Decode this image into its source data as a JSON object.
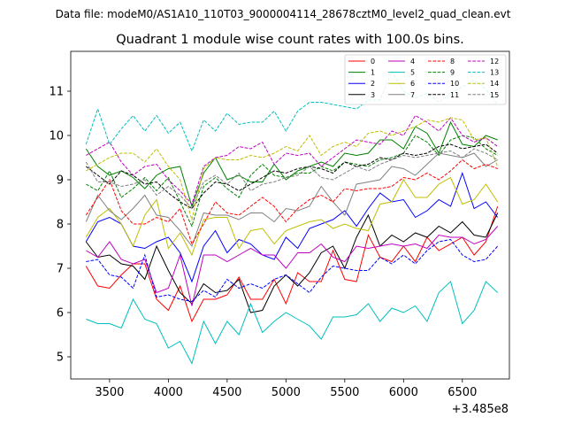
{
  "chart_data": {
    "type": "line",
    "suptitle": "Data file: modeM0/AS1A10_110T03_9000004114_28678cztM0_level2_quad_clean.evt",
    "title": "Quadrant 1 module wise count rates with 100.0s bins.",
    "xlabel": "",
    "ylabel": "",
    "x_offset_label": "+3.485e8",
    "xlim": [
      3170,
      6900
    ],
    "ylim": [
      4.5,
      11.9
    ],
    "xticks": [
      3500,
      4000,
      4500,
      5000,
      5500,
      6000,
      6500
    ],
    "xtick_labels": [
      "3500",
      "4000",
      "4500",
      "5000",
      "5500",
      "6000",
      "6500"
    ],
    "yticks": [
      5,
      6,
      7,
      8,
      9,
      10,
      11
    ],
    "ytick_labels": [
      "5",
      "6",
      "7",
      "8",
      "9",
      "10",
      "11"
    ],
    "legend_position": "top-right",
    "x": [
      3300,
      3400,
      3500,
      3600,
      3700,
      3800,
      3900,
      4000,
      4100,
      4200,
      4300,
      4400,
      4500,
      4600,
      4700,
      4800,
      4900,
      5000,
      5100,
      5200,
      5300,
      5400,
      5500,
      5600,
      5700,
      5800,
      5900,
      6000,
      6100,
      6200,
      6300,
      6400,
      6500,
      6600,
      6700,
      6800
    ],
    "series": [
      {
        "name": "0",
        "color": "#ff0000",
        "dash": "solid",
        "values": [
          7.05,
          6.6,
          6.55,
          6.85,
          7.1,
          7.1,
          6.3,
          6.05,
          6.6,
          5.8,
          6.3,
          6.3,
          6.4,
          6.8,
          6.3,
          6.3,
          6.75,
          6.2,
          6.9,
          6.7,
          6.7,
          7.4,
          6.75,
          6.7,
          7.75,
          7.25,
          7.15,
          7.5,
          7.15,
          7.7,
          7.4,
          7.55,
          7.7,
          7.3,
          7.6,
          8.4
        ]
      },
      {
        "name": "1",
        "color": "#008000",
        "dash": "solid",
        "values": [
          9.7,
          9.3,
          9.1,
          9.2,
          9.05,
          8.8,
          9.1,
          9.25,
          9.3,
          8.4,
          9.15,
          9.5,
          9.0,
          9.1,
          8.95,
          8.95,
          9.35,
          9.0,
          9.2,
          9.3,
          9.4,
          9.3,
          9.6,
          9.55,
          9.6,
          9.9,
          9.9,
          9.7,
          10.2,
          10.05,
          9.6,
          10.3,
          9.8,
          9.75,
          10.0,
          9.9
        ]
      },
      {
        "name": "2",
        "color": "#0000ff",
        "dash": "solid",
        "values": [
          7.6,
          8.05,
          8.15,
          8.0,
          7.5,
          7.45,
          7.6,
          7.7,
          7.35,
          6.7,
          7.5,
          7.85,
          7.35,
          7.65,
          7.55,
          7.3,
          7.2,
          7.7,
          7.45,
          7.9,
          8.0,
          8.1,
          8.3,
          7.95,
          8.35,
          8.7,
          8.5,
          8.55,
          8.15,
          8.3,
          8.55,
          8.4,
          9.15,
          8.35,
          8.5,
          8.15
        ]
      },
      {
        "name": "3",
        "color": "#000000",
        "dash": "solid",
        "values": [
          7.6,
          7.25,
          7.3,
          7.1,
          7.05,
          6.75,
          7.5,
          6.95,
          6.45,
          6.2,
          6.65,
          6.45,
          6.5,
          6.75,
          6.0,
          6.05,
          6.6,
          6.85,
          6.6,
          6.9,
          7.35,
          7.5,
          7.0,
          7.7,
          8.2,
          7.5,
          7.75,
          7.6,
          7.8,
          7.7,
          7.95,
          7.8,
          8.05,
          7.75,
          7.7,
          8.25
        ]
      },
      {
        "name": "4",
        "color": "#bf00bf",
        "dash": "solid",
        "values": [
          7.4,
          7.25,
          7.6,
          7.2,
          7.1,
          7.2,
          6.45,
          6.55,
          7.3,
          6.15,
          7.3,
          7.3,
          7.15,
          7.3,
          7.45,
          7.3,
          7.3,
          7.0,
          7.35,
          7.35,
          7.55,
          7.25,
          7.15,
          7.5,
          7.45,
          7.5,
          7.55,
          7.5,
          7.55,
          7.45,
          7.75,
          7.7,
          7.7,
          7.55,
          7.65,
          7.95
        ]
      },
      {
        "name": "5",
        "color": "#00bfbf",
        "dash": "solid",
        "values": [
          5.85,
          5.75,
          5.75,
          5.65,
          6.3,
          5.85,
          5.75,
          5.2,
          5.35,
          4.85,
          5.8,
          5.3,
          5.8,
          5.5,
          6.2,
          5.55,
          5.8,
          6.0,
          5.85,
          5.7,
          5.4,
          5.9,
          5.9,
          5.95,
          6.2,
          5.8,
          6.1,
          6.0,
          6.15,
          5.8,
          6.45,
          6.7,
          5.75,
          6.05,
          6.7,
          6.45
        ]
      },
      {
        "name": "6",
        "color": "#bfbf00",
        "dash": "solid",
        "values": [
          7.7,
          8.15,
          8.35,
          8.0,
          7.5,
          8.2,
          8.55,
          7.45,
          7.8,
          7.3,
          8.1,
          8.15,
          8.15,
          7.45,
          7.85,
          7.9,
          7.55,
          7.85,
          7.95,
          8.05,
          8.1,
          7.9,
          8.0,
          7.9,
          7.85,
          8.45,
          8.5,
          9.0,
          8.6,
          8.6,
          8.9,
          9.05,
          8.45,
          8.55,
          8.9,
          8.5
        ]
      },
      {
        "name": "7",
        "color": "#808080",
        "dash": "solid",
        "values": [
          8.05,
          8.65,
          8.3,
          8.1,
          8.35,
          8.65,
          8.2,
          8.15,
          7.85,
          7.5,
          8.25,
          8.2,
          8.2,
          8.1,
          8.25,
          8.25,
          8.05,
          8.35,
          8.3,
          8.4,
          8.85,
          8.5,
          8.2,
          8.9,
          8.95,
          9.0,
          9.3,
          9.25,
          9.1,
          9.35,
          9.6,
          9.55,
          9.5,
          9.6,
          9.3,
          9.45
        ]
      },
      {
        "name": "8",
        "color": "#ff0000",
        "dash": "dashed",
        "values": [
          8.2,
          8.6,
          9.0,
          8.3,
          8.0,
          8.0,
          8.15,
          8.05,
          8.35,
          7.55,
          8.0,
          8.5,
          8.25,
          8.2,
          8.4,
          8.6,
          8.4,
          8.05,
          8.35,
          8.55,
          8.65,
          8.5,
          8.8,
          8.75,
          8.8,
          8.8,
          8.85,
          9.05,
          9.0,
          9.15,
          9.0,
          9.2,
          9.45,
          9.25,
          9.35,
          9.25
        ]
      },
      {
        "name": "9",
        "color": "#008000",
        "dash": "dashed",
        "values": [
          8.9,
          8.75,
          9.2,
          8.6,
          8.8,
          9.05,
          8.75,
          9.05,
          8.5,
          7.95,
          8.85,
          9.05,
          8.8,
          8.6,
          9.1,
          9.35,
          9.1,
          9.05,
          9.15,
          9.15,
          9.3,
          9.2,
          9.4,
          9.35,
          9.3,
          9.45,
          9.5,
          9.6,
          10.0,
          9.85,
          9.55,
          9.9,
          10.0,
          9.95,
          9.7,
          9.55
        ]
      },
      {
        "name": "10",
        "color": "#0000ff",
        "dash": "dashed",
        "values": [
          7.15,
          7.2,
          6.85,
          6.8,
          6.55,
          7.3,
          6.35,
          6.4,
          6.3,
          6.25,
          6.5,
          6.35,
          6.75,
          6.55,
          6.65,
          6.55,
          6.75,
          6.85,
          6.65,
          6.45,
          6.8,
          7.05,
          7.0,
          6.95,
          6.95,
          7.25,
          7.1,
          7.3,
          7.1,
          7.4,
          7.6,
          7.65,
          7.3,
          7.15,
          7.2,
          7.5
        ]
      },
      {
        "name": "11",
        "color": "#000000",
        "dash": "dashed",
        "values": [
          9.3,
          9.1,
          8.9,
          9.2,
          9.1,
          8.9,
          8.95,
          8.7,
          8.5,
          8.35,
          8.7,
          8.95,
          8.9,
          8.75,
          8.9,
          9.05,
          9.2,
          9.15,
          9.25,
          9.3,
          9.25,
          9.15,
          9.4,
          9.3,
          9.35,
          9.5,
          9.45,
          9.6,
          9.55,
          9.6,
          9.75,
          9.8,
          9.7,
          9.75,
          9.8,
          9.6
        ]
      },
      {
        "name": "12",
        "color": "#bf00bf",
        "dash": "dashed",
        "values": [
          9.55,
          9.7,
          9.85,
          9.4,
          9.1,
          9.3,
          9.35,
          9.0,
          8.75,
          8.45,
          9.3,
          9.5,
          9.55,
          9.75,
          9.7,
          9.85,
          9.35,
          9.6,
          9.55,
          9.6,
          9.3,
          9.5,
          9.7,
          9.9,
          9.85,
          9.8,
          10.1,
          10.0,
          10.45,
          10.3,
          10.1,
          10.4,
          10.0,
          9.85,
          9.95,
          9.75
        ]
      },
      {
        "name": "13",
        "color": "#00bfbf",
        "dash": "dashed",
        "values": [
          9.8,
          10.6,
          9.8,
          10.15,
          10.45,
          10.1,
          10.45,
          10.05,
          10.3,
          9.65,
          10.35,
          10.1,
          10.5,
          10.25,
          10.3,
          10.3,
          10.55,
          10.1,
          10.55,
          10.75,
          10.75,
          10.7,
          10.65,
          10.6,
          10.8,
          10.8,
          11.45,
          11.0,
          10.85,
          10.95,
          10.75,
          10.95,
          11.1,
          11.25,
          11.05,
          10.7
        ]
      },
      {
        "name": "14",
        "color": "#bfbf00",
        "dash": "dashed",
        "values": [
          9.2,
          9.35,
          9.5,
          9.6,
          9.6,
          9.4,
          9.7,
          9.3,
          9.0,
          8.1,
          9.25,
          9.5,
          9.45,
          9.45,
          9.55,
          9.5,
          9.6,
          9.75,
          9.65,
          10.0,
          9.55,
          9.75,
          9.85,
          9.75,
          10.05,
          10.1,
          10.0,
          10.1,
          10.2,
          10.35,
          10.3,
          10.4,
          10.35,
          9.9,
          9.95,
          9.3
        ]
      },
      {
        "name": "15",
        "color": "#808080",
        "dash": "dashed",
        "values": [
          9.4,
          8.95,
          8.95,
          8.85,
          8.9,
          9.0,
          8.65,
          8.85,
          8.65,
          8.35,
          8.95,
          9.1,
          8.9,
          9.15,
          8.75,
          8.9,
          8.95,
          9.05,
          9.1,
          9.3,
          9.05,
          9.0,
          9.15,
          9.3,
          9.2,
          9.35,
          9.45,
          9.55,
          9.5,
          9.55,
          9.6,
          9.65,
          9.5,
          9.7,
          9.6,
          9.45
        ]
      }
    ]
  }
}
